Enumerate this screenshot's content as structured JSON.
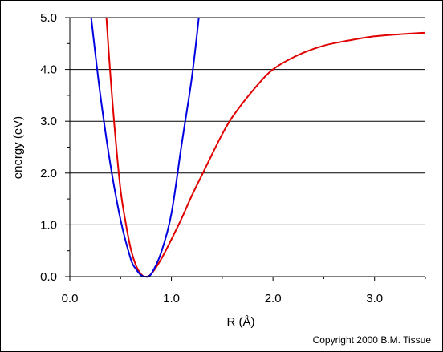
{
  "chart_data": {
    "type": "line",
    "xlabel": "R (Å)",
    "ylabel": "energy (eV)",
    "xlim": [
      0.0,
      3.5
    ],
    "ylim": [
      0.0,
      5.0
    ],
    "x_ticks": [
      0.0,
      1.0,
      2.0,
      3.0
    ],
    "x_tick_labels": [
      "0.0",
      "1.0",
      "2.0",
      "3.0"
    ],
    "y_ticks": [
      0.0,
      1.0,
      2.0,
      3.0,
      4.0,
      5.0
    ],
    "y_tick_labels": [
      "0.0",
      "1.0",
      "2.0",
      "3.0",
      "4.0",
      "5.0"
    ],
    "grid": "horizontal",
    "series": [
      {
        "color": "#e00000",
        "x": [
          0.36,
          0.4,
          0.45,
          0.5,
          0.55,
          0.6,
          0.65,
          0.7,
          0.74,
          0.8,
          0.9,
          1.0,
          1.1,
          1.2,
          1.3,
          1.4,
          1.5,
          1.6,
          1.8,
          2.0,
          2.25,
          2.5,
          2.75,
          3.0,
          3.25,
          3.5
        ],
        "y": [
          5.0,
          3.88,
          2.66,
          1.66,
          1.04,
          0.54,
          0.22,
          0.05,
          0.0,
          0.05,
          0.34,
          0.72,
          1.12,
          1.56,
          1.96,
          2.36,
          2.75,
          3.08,
          3.59,
          4.0,
          4.28,
          4.46,
          4.56,
          4.64,
          4.68,
          4.71
        ]
      },
      {
        "color": "#0000e0",
        "x": [
          0.21,
          0.3,
          0.4,
          0.5,
          0.6,
          0.65,
          0.7,
          0.74,
          0.8,
          0.9,
          1.0,
          1.1,
          1.2,
          1.27
        ],
        "y": [
          5.0,
          3.51,
          2.16,
          1.09,
          0.34,
          0.15,
          0.03,
          0.0,
          0.05,
          0.47,
          1.22,
          2.54,
          3.83,
          5.0
        ]
      }
    ]
  },
  "copyright": "Copyright 2000 B.M. Tissue"
}
